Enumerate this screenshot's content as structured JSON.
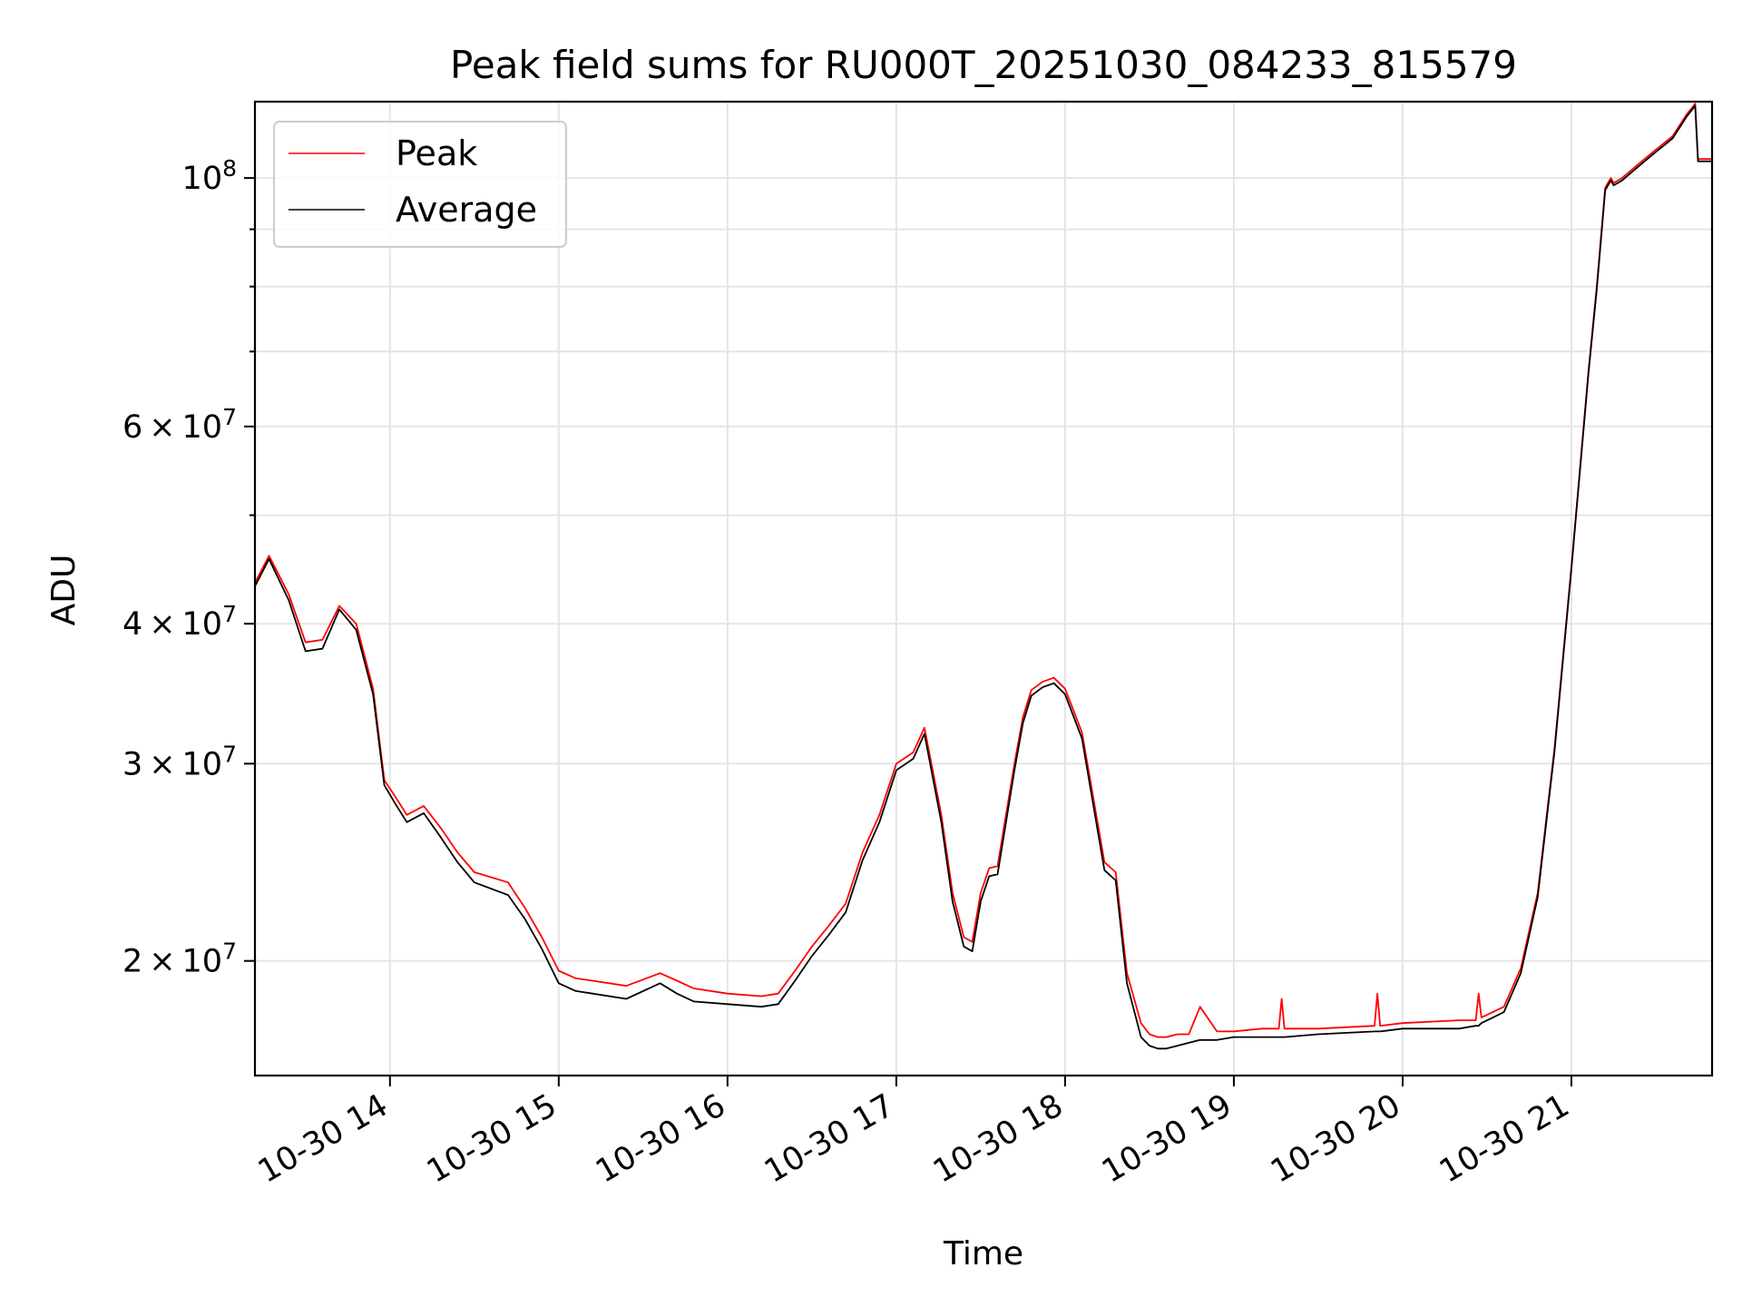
{
  "chart_data": {
    "type": "line",
    "title": "Peak field sums for RU000T_20251030_084233_815579",
    "xlabel": "Time",
    "ylabel": "ADU",
    "yscale": "log",
    "ylim": [
      15800000,
      117000000
    ],
    "xlim": [
      "2025-10-30 13:12",
      "2025-10-30 21:50"
    ],
    "grid": true,
    "legend_position": "top-left",
    "x_tick_labels": [
      "10-30 14",
      "10-30 15",
      "10-30 16",
      "10-30 17",
      "10-30 18",
      "10-30 19",
      "10-30 20",
      "10-30 21"
    ],
    "x_tick_values": [
      "2025-10-30 14:00",
      "2025-10-30 15:00",
      "2025-10-30 16:00",
      "2025-10-30 17:00",
      "2025-10-30 18:00",
      "2025-10-30 19:00",
      "2025-10-30 20:00",
      "2025-10-30 21:00"
    ],
    "y_tick_labels": [
      {
        "value": 20000000,
        "mantissa": "2",
        "exp": "7"
      },
      {
        "value": 30000000,
        "mantissa": "3",
        "exp": "7"
      },
      {
        "value": 40000000,
        "mantissa": "4",
        "exp": "7"
      },
      {
        "value": 60000000,
        "mantissa": "6",
        "exp": "7"
      },
      {
        "value": 100000000,
        "mantissa": "",
        "exp": "8"
      }
    ],
    "y_minor_ticks": [
      50000000,
      70000000,
      80000000,
      90000000
    ],
    "series": [
      {
        "name": "Peak",
        "color": "#ff0000",
        "x": [
          "2025-10-30 13:12",
          "2025-10-30 13:17",
          "2025-10-30 13:24",
          "2025-10-30 13:30",
          "2025-10-30 13:36",
          "2025-10-30 13:42",
          "2025-10-30 13:48",
          "2025-10-30 13:54",
          "2025-10-30 13:58",
          "2025-10-30 14:02",
          "2025-10-30 14:06",
          "2025-10-30 14:12",
          "2025-10-30 14:18",
          "2025-10-30 14:24",
          "2025-10-30 14:30",
          "2025-10-30 14:42",
          "2025-10-30 14:48",
          "2025-10-30 14:54",
          "2025-10-30 15:00",
          "2025-10-30 15:06",
          "2025-10-30 15:12",
          "2025-10-30 15:24",
          "2025-10-30 15:36",
          "2025-10-30 15:42",
          "2025-10-30 15:48",
          "2025-10-30 16:00",
          "2025-10-30 16:12",
          "2025-10-30 16:18",
          "2025-10-30 16:24",
          "2025-10-30 16:30",
          "2025-10-30 16:36",
          "2025-10-30 16:42",
          "2025-10-30 16:48",
          "2025-10-30 16:54",
          "2025-10-30 17:00",
          "2025-10-30 17:06",
          "2025-10-30 17:10",
          "2025-10-30 17:16",
          "2025-10-30 17:20",
          "2025-10-30 17:24",
          "2025-10-30 17:27",
          "2025-10-30 17:30",
          "2025-10-30 17:33",
          "2025-10-30 17:36",
          "2025-10-30 17:42",
          "2025-10-30 17:45",
          "2025-10-30 17:48",
          "2025-10-30 17:52",
          "2025-10-30 17:56",
          "2025-10-30 18:00",
          "2025-10-30 18:06",
          "2025-10-30 18:10",
          "2025-10-30 18:14",
          "2025-10-30 18:18",
          "2025-10-30 18:22",
          "2025-10-30 18:27",
          "2025-10-30 18:30",
          "2025-10-30 18:33",
          "2025-10-30 18:36",
          "2025-10-30 18:40",
          "2025-10-30 18:44",
          "2025-10-30 18:48",
          "2025-10-30 18:54",
          "2025-10-30 19:00",
          "2025-10-30 19:10",
          "2025-10-30 19:16",
          "2025-10-30 19:17",
          "2025-10-30 19:18",
          "2025-10-30 19:30",
          "2025-10-30 19:50",
          "2025-10-30 19:51",
          "2025-10-30 19:52",
          "2025-10-30 20:00",
          "2025-10-30 20:20",
          "2025-10-30 20:26",
          "2025-10-30 20:27",
          "2025-10-30 20:28",
          "2025-10-30 20:36",
          "2025-10-30 20:42",
          "2025-10-30 20:48",
          "2025-10-30 20:54",
          "2025-10-30 21:00",
          "2025-10-30 21:06",
          "2025-10-30 21:09",
          "2025-10-30 21:12",
          "2025-10-30 21:14",
          "2025-10-30 21:15",
          "2025-10-30 21:18",
          "2025-10-30 21:24",
          "2025-10-30 21:30",
          "2025-10-30 21:36",
          "2025-10-30 21:41",
          "2025-10-30 21:44",
          "2025-10-30 21:45",
          "2025-10-30 21:50"
        ],
        "values": [
          43500000,
          46000000,
          42500000,
          38500000,
          38700000,
          41500000,
          40000000,
          35000000,
          29000000,
          28000000,
          27000000,
          27500000,
          26300000,
          25000000,
          24000000,
          23500000,
          22300000,
          21000000,
          19600000,
          19300000,
          19200000,
          19000000,
          19500000,
          19200000,
          18900000,
          18700000,
          18600000,
          18700000,
          19600000,
          20600000,
          21500000,
          22500000,
          25000000,
          27000000,
          30000000,
          30700000,
          32300000,
          27000000,
          23000000,
          21000000,
          20800000,
          23000000,
          24200000,
          24300000,
          30000000,
          33000000,
          34900000,
          35500000,
          35800000,
          35000000,
          32000000,
          28000000,
          24500000,
          24000000,
          19500000,
          17600000,
          17200000,
          17100000,
          17100000,
          17200000,
          17200000,
          18200000,
          17300000,
          17300000,
          17400000,
          17400000,
          18500000,
          17400000,
          17400000,
          17500000,
          18700000,
          17500000,
          17600000,
          17700000,
          17700000,
          18700000,
          17800000,
          18200000,
          19700000,
          23000000,
          31000000,
          45000000,
          67000000,
          80000000,
          98000000,
          100000000,
          99000000,
          100000000,
          103000000,
          106000000,
          109000000,
          114000000,
          116500000,
          104000000,
          104000000
        ]
      },
      {
        "name": "Average",
        "color": "#000000",
        "x": [
          "2025-10-30 13:12",
          "2025-10-30 13:17",
          "2025-10-30 13:24",
          "2025-10-30 13:30",
          "2025-10-30 13:36",
          "2025-10-30 13:42",
          "2025-10-30 13:48",
          "2025-10-30 13:54",
          "2025-10-30 13:58",
          "2025-10-30 14:02",
          "2025-10-30 14:06",
          "2025-10-30 14:12",
          "2025-10-30 14:18",
          "2025-10-30 14:24",
          "2025-10-30 14:30",
          "2025-10-30 14:42",
          "2025-10-30 14:48",
          "2025-10-30 14:54",
          "2025-10-30 15:00",
          "2025-10-30 15:06",
          "2025-10-30 15:12",
          "2025-10-30 15:24",
          "2025-10-30 15:36",
          "2025-10-30 15:42",
          "2025-10-30 15:48",
          "2025-10-30 16:00",
          "2025-10-30 16:12",
          "2025-10-30 16:18",
          "2025-10-30 16:24",
          "2025-10-30 16:30",
          "2025-10-30 16:36",
          "2025-10-30 16:42",
          "2025-10-30 16:48",
          "2025-10-30 16:54",
          "2025-10-30 17:00",
          "2025-10-30 17:06",
          "2025-10-30 17:10",
          "2025-10-30 17:16",
          "2025-10-30 17:20",
          "2025-10-30 17:24",
          "2025-10-30 17:27",
          "2025-10-30 17:30",
          "2025-10-30 17:33",
          "2025-10-30 17:36",
          "2025-10-30 17:42",
          "2025-10-30 17:45",
          "2025-10-30 17:48",
          "2025-10-30 17:52",
          "2025-10-30 17:56",
          "2025-10-30 18:00",
          "2025-10-30 18:06",
          "2025-10-30 18:10",
          "2025-10-30 18:14",
          "2025-10-30 18:18",
          "2025-10-30 18:22",
          "2025-10-30 18:27",
          "2025-10-30 18:30",
          "2025-10-30 18:33",
          "2025-10-30 18:36",
          "2025-10-30 18:40",
          "2025-10-30 18:44",
          "2025-10-30 18:48",
          "2025-10-30 18:54",
          "2025-10-30 19:00",
          "2025-10-30 19:10",
          "2025-10-30 19:16",
          "2025-10-30 19:17",
          "2025-10-30 19:18",
          "2025-10-30 19:30",
          "2025-10-30 19:50",
          "2025-10-30 19:51",
          "2025-10-30 19:52",
          "2025-10-30 20:00",
          "2025-10-30 20:20",
          "2025-10-30 20:26",
          "2025-10-30 20:27",
          "2025-10-30 20:28",
          "2025-10-30 20:36",
          "2025-10-30 20:42",
          "2025-10-30 20:48",
          "2025-10-30 20:54",
          "2025-10-30 21:00",
          "2025-10-30 21:06",
          "2025-10-30 21:09",
          "2025-10-30 21:12",
          "2025-10-30 21:14",
          "2025-10-30 21:15",
          "2025-10-30 21:18",
          "2025-10-30 21:24",
          "2025-10-30 21:30",
          "2025-10-30 21:36",
          "2025-10-30 21:41",
          "2025-10-30 21:44",
          "2025-10-30 21:45",
          "2025-10-30 21:50"
        ],
        "values": [
          43200000,
          45700000,
          42000000,
          37800000,
          38000000,
          41200000,
          39500000,
          34600000,
          28700000,
          27600000,
          26600000,
          27100000,
          25800000,
          24500000,
          23500000,
          22900000,
          21800000,
          20500000,
          19100000,
          18800000,
          18700000,
          18500000,
          19100000,
          18700000,
          18400000,
          18300000,
          18200000,
          18300000,
          19200000,
          20200000,
          21100000,
          22100000,
          24600000,
          26600000,
          29600000,
          30300000,
          31900000,
          26600000,
          22600000,
          20600000,
          20400000,
          22600000,
          23800000,
          23900000,
          29600000,
          32600000,
          34500000,
          35100000,
          35400000,
          34600000,
          31600000,
          27600000,
          24100000,
          23600000,
          19100000,
          17100000,
          16800000,
          16700000,
          16700000,
          16800000,
          16900000,
          17000000,
          17000000,
          17100000,
          17100000,
          17100000,
          17100000,
          17100000,
          17200000,
          17300000,
          17300000,
          17300000,
          17400000,
          17400000,
          17500000,
          17500000,
          17600000,
          18000000,
          19500000,
          22800000,
          30800000,
          44800000,
          66700000,
          79500000,
          97500000,
          99500000,
          98500000,
          99500000,
          102500000,
          105500000,
          108500000,
          113500000,
          116000000,
          103500000,
          103500000
        ]
      }
    ]
  }
}
